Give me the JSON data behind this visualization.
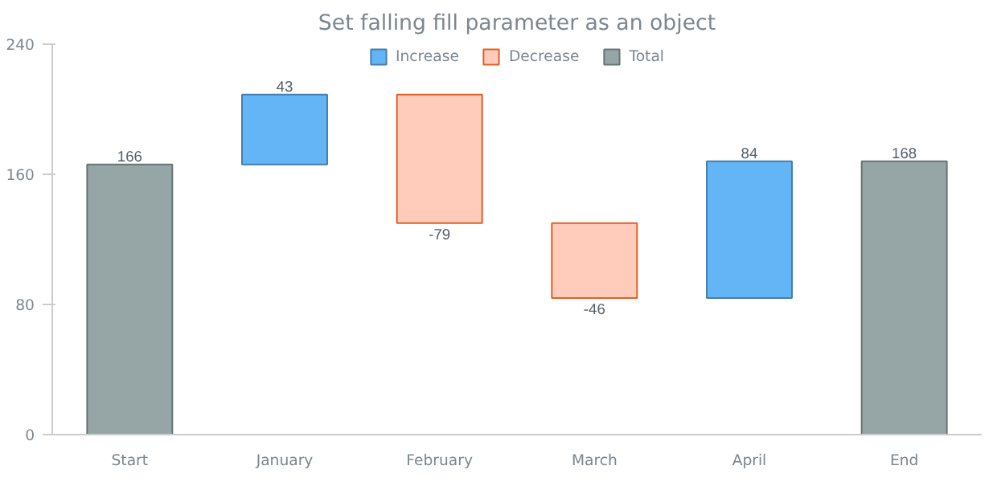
{
  "chart_data": {
    "type": "bar",
    "title": "Set falling fill parameter as an object",
    "categories": [
      "Start",
      "January",
      "February",
      "March",
      "April",
      "End"
    ],
    "series": [
      {
        "name": "Increase",
        "color": "#64b5f6",
        "values": [
          null,
          43,
          null,
          null,
          84,
          null
        ],
        "base": [
          null,
          166,
          null,
          null,
          84,
          null
        ]
      },
      {
        "name": "Decrease",
        "color": "#ffccbc",
        "values": [
          null,
          null,
          -79,
          -46,
          null,
          null
        ],
        "base": [
          null,
          null,
          209,
          130,
          null,
          null
        ]
      },
      {
        "name": "Total",
        "color": "#96a6a6",
        "values": [
          166,
          null,
          null,
          null,
          null,
          168
        ],
        "base": [
          0,
          null,
          null,
          null,
          null,
          0
        ]
      }
    ],
    "value_labels": [
      "166",
      "43",
      "-79",
      "-46",
      "84",
      "168"
    ],
    "ylim": [
      0,
      240
    ],
    "yticks": [
      0,
      80,
      160,
      240
    ],
    "legend": "top"
  }
}
